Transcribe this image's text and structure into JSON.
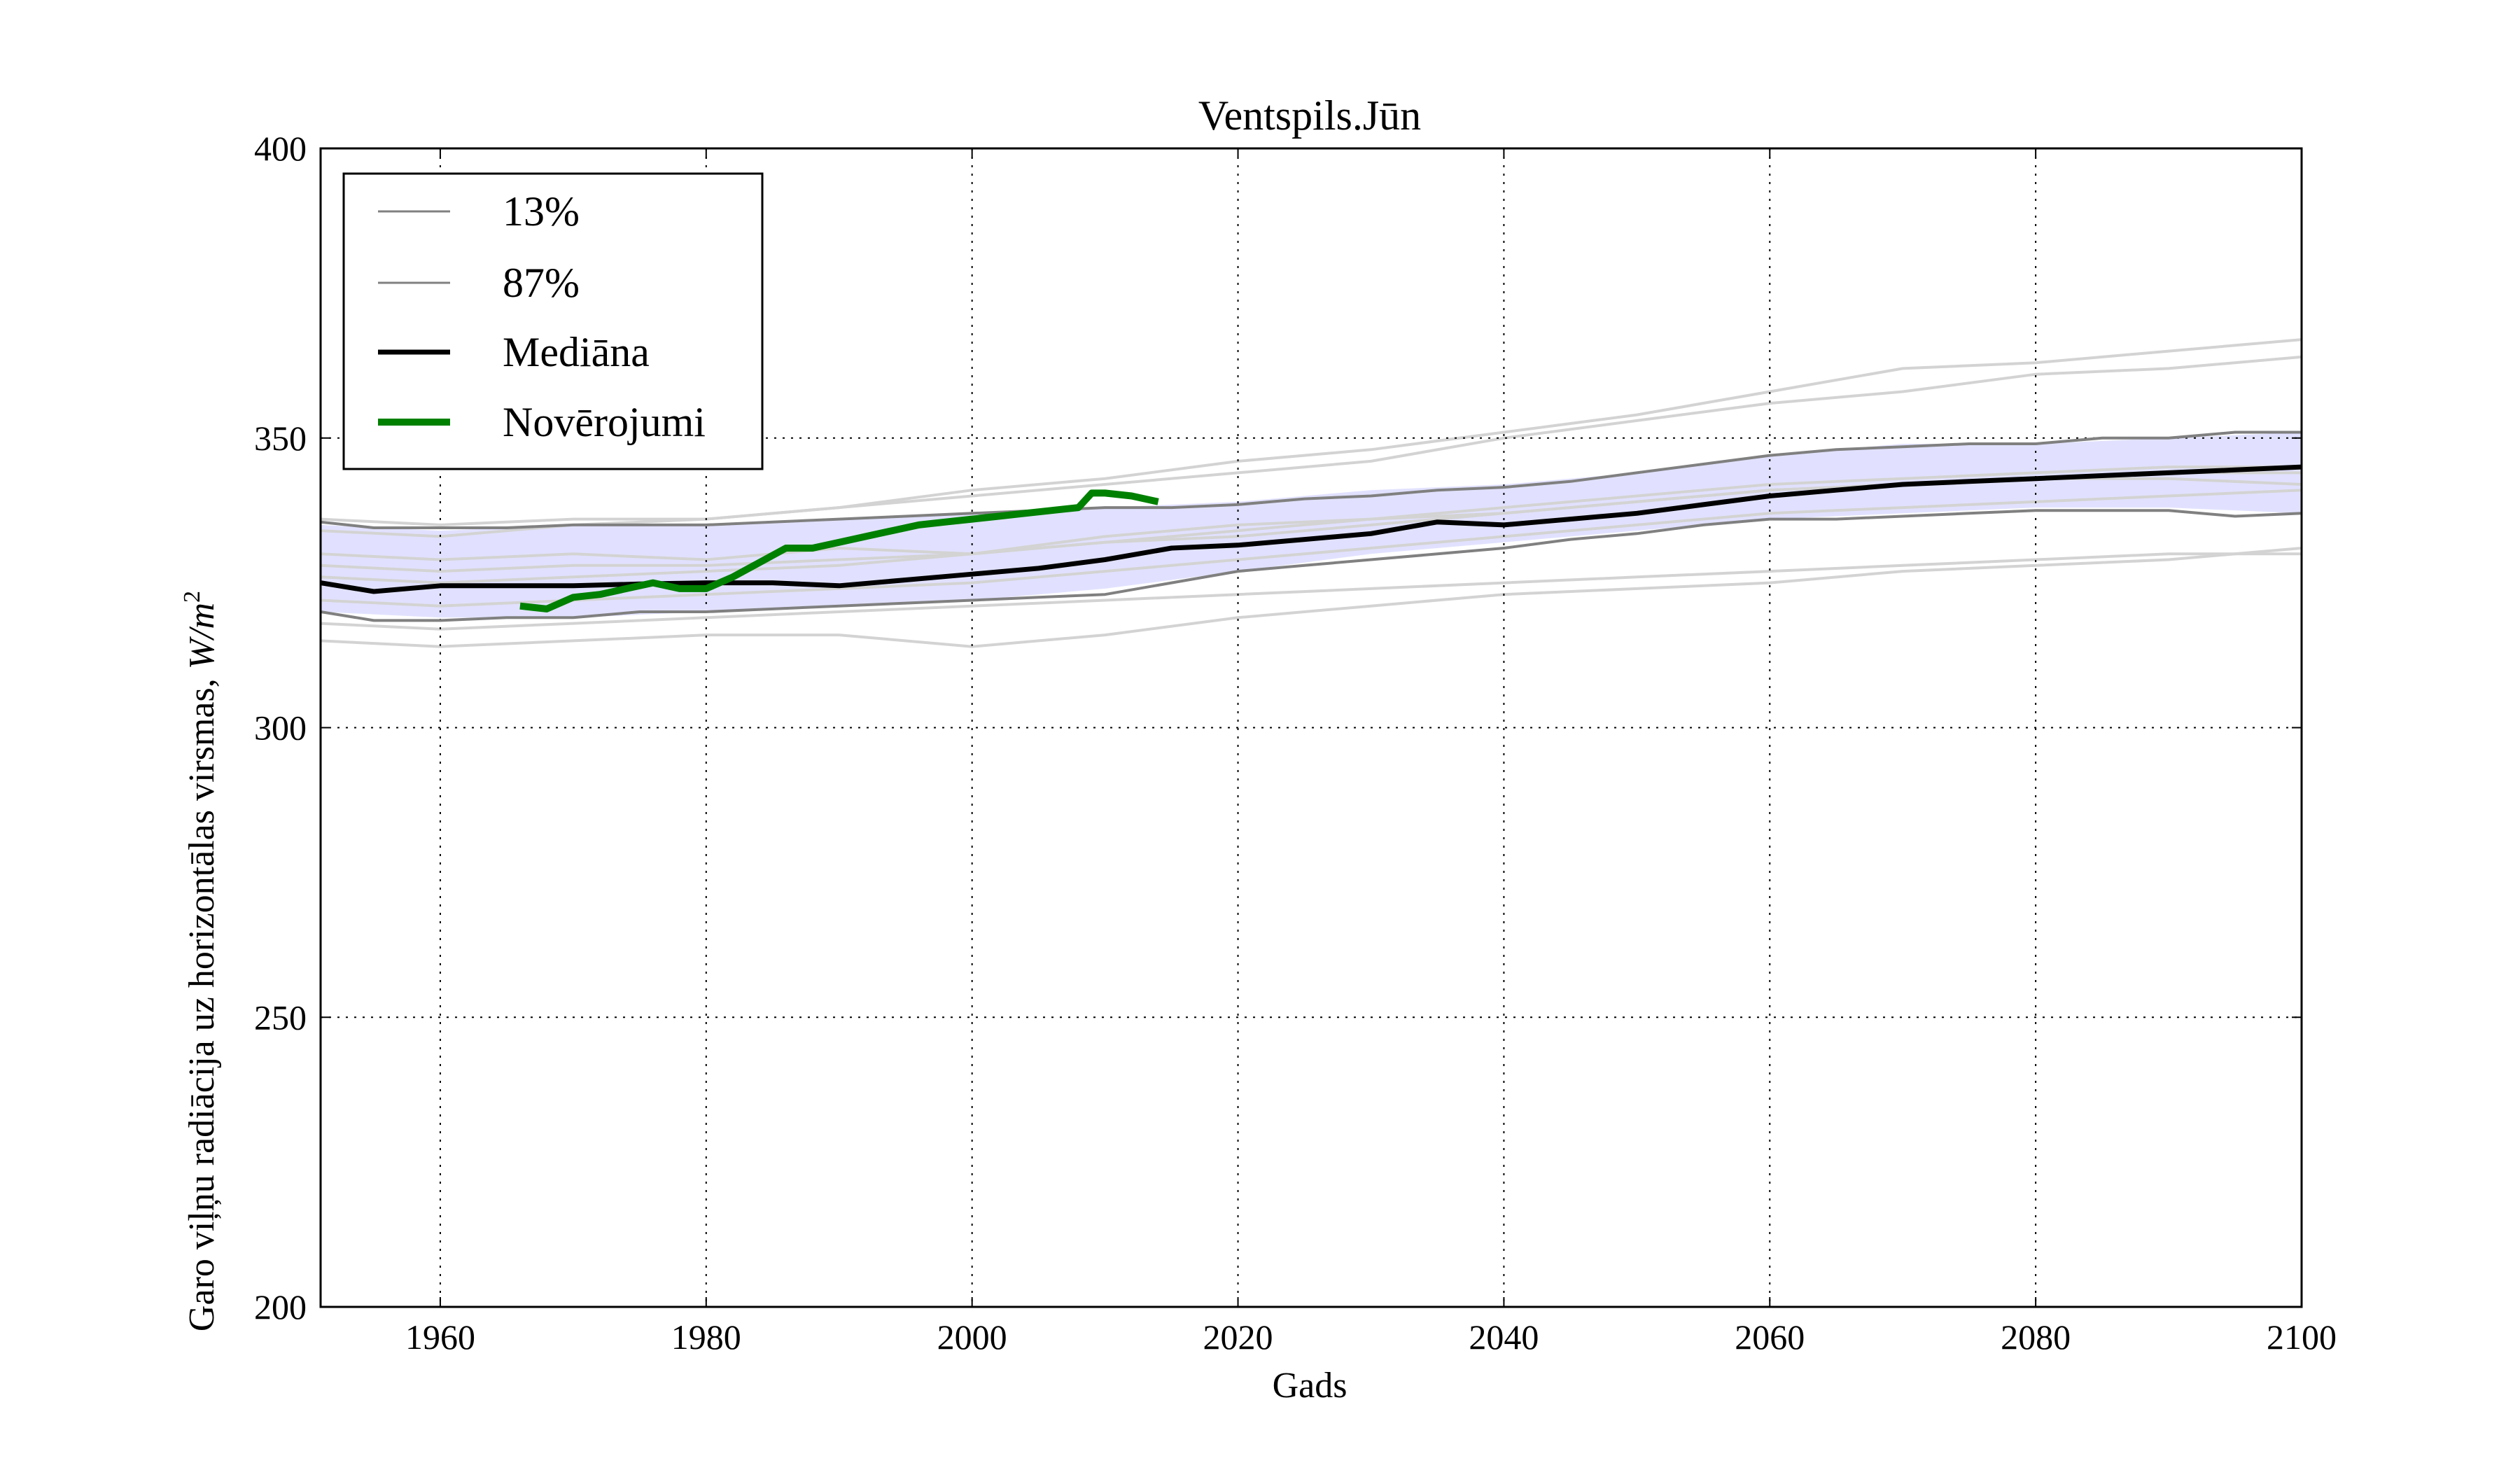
{
  "chart_data": {
    "type": "line",
    "title": "Ventspils.Jūn",
    "xlabel": "Gads",
    "ylabel_text": "Garo viļņu radiācija uz horizontālas virsmas, ",
    "ylabel_unit": "W/m",
    "ylabel_unit_exp": "2",
    "xlim": [
      1951,
      2100
    ],
    "ylim": [
      200,
      400
    ],
    "x_ticks": [
      1960,
      1980,
      2000,
      2020,
      2040,
      2060,
      2080,
      2100
    ],
    "y_ticks": [
      200,
      250,
      300,
      350,
      400
    ],
    "grid": true,
    "legend": {
      "placement": "top-left",
      "entries": [
        {
          "label": "13%",
          "color": "#808080",
          "style": "thin"
        },
        {
          "label": "87%",
          "color": "#808080",
          "style": "thin"
        },
        {
          "label": "Mediāna",
          "color": "#000000",
          "style": "medium"
        },
        {
          "label": "Novērojumi",
          "color": "#008000",
          "style": "thick"
        }
      ]
    },
    "band": {
      "color": "#dcdcff",
      "x": [
        1951,
        1960,
        1970,
        1980,
        1990,
        2000,
        2010,
        2020,
        2030,
        2040,
        2050,
        2060,
        2070,
        2080,
        2090,
        2100
      ],
      "lower": [
        320,
        319,
        319,
        320,
        321,
        322,
        324,
        327,
        330,
        332,
        334,
        336,
        337,
        338,
        338,
        337
      ],
      "upper": [
        335,
        334,
        335,
        335,
        336,
        337,
        338,
        339,
        341,
        342,
        344,
        347,
        349,
        349,
        350,
        351
      ]
    },
    "series": [
      {
        "name": "13%",
        "color": "#808080",
        "role": "bound",
        "x": [
          1951,
          1955,
          1960,
          1965,
          1970,
          1975,
          1980,
          1985,
          1990,
          1995,
          2000,
          2005,
          2010,
          2015,
          2020,
          2025,
          2030,
          2035,
          2040,
          2045,
          2050,
          2055,
          2060,
          2065,
          2070,
          2075,
          2080,
          2085,
          2090,
          2095,
          2100
        ],
        "y": [
          320,
          318.5,
          318.5,
          319,
          319,
          320,
          320,
          320.5,
          321,
          321.5,
          322,
          322.5,
          323,
          325,
          327,
          328,
          329,
          330,
          331,
          332.5,
          333.5,
          335,
          336,
          336,
          336.5,
          337,
          337.5,
          337.5,
          337.5,
          336.5,
          337
        ]
      },
      {
        "name": "87%",
        "color": "#808080",
        "role": "bound",
        "x": [
          1951,
          1955,
          1960,
          1965,
          1970,
          1975,
          1980,
          1985,
          1990,
          1995,
          2000,
          2005,
          2010,
          2015,
          2020,
          2025,
          2030,
          2035,
          2040,
          2045,
          2050,
          2055,
          2060,
          2065,
          2070,
          2075,
          2080,
          2085,
          2090,
          2095,
          2100
        ],
        "y": [
          335.5,
          334.5,
          334.5,
          334.5,
          335,
          335,
          335,
          335.5,
          336,
          336.5,
          337,
          337.5,
          338,
          338,
          338.5,
          339.5,
          340,
          341,
          341.5,
          342.5,
          344,
          345.5,
          347,
          348,
          348.5,
          349,
          349,
          350,
          350,
          351,
          351
        ]
      },
      {
        "name": "Mediāna",
        "color": "#000000",
        "role": "median",
        "x": [
          1951,
          1955,
          1960,
          1965,
          1970,
          1975,
          1980,
          1985,
          1990,
          1995,
          2000,
          2005,
          2010,
          2015,
          2020,
          2025,
          2030,
          2035,
          2040,
          2045,
          2050,
          2055,
          2060,
          2065,
          2070,
          2075,
          2080,
          2085,
          2090,
          2095,
          2100
        ],
        "y": [
          325,
          323.5,
          324.5,
          324.5,
          324.5,
          324.8,
          325,
          325,
          324.5,
          325.5,
          326.5,
          327.5,
          329,
          331,
          331.5,
          332.5,
          333.5,
          335.5,
          335,
          336,
          337,
          338.5,
          340,
          341,
          342,
          342.5,
          343,
          343.5,
          344,
          344.5,
          345
        ]
      },
      {
        "name": "Novērojumi",
        "color": "#008000",
        "role": "observations",
        "x": [
          1966,
          1968,
          1970,
          1972,
          1974,
          1976,
          1978,
          1980,
          1982,
          1984,
          1986,
          1988,
          1990,
          1992,
          1994,
          1996,
          1998,
          2000,
          2002,
          2004,
          2006,
          2008,
          2009,
          2010,
          2012,
          2014
        ],
        "y": [
          321,
          320.5,
          322.5,
          323,
          324,
          325,
          324,
          324,
          326,
          328.5,
          331,
          331,
          332,
          333,
          334,
          335,
          335.5,
          336,
          336.5,
          337,
          337.5,
          338,
          340.5,
          340.5,
          340,
          339
        ]
      }
    ],
    "model_runs": {
      "color": "#d3d3d3",
      "x": [
        1951,
        1960,
        1970,
        1980,
        1990,
        2000,
        2010,
        2020,
        2030,
        2040,
        2050,
        2060,
        2070,
        2080,
        2090,
        2100
      ],
      "runs": [
        [
          315,
          314,
          315,
          316,
          316,
          314,
          316,
          319,
          321,
          323,
          324,
          325,
          327,
          328,
          329,
          331
        ],
        [
          318,
          317,
          318,
          319,
          320,
          321,
          322,
          323,
          324,
          325,
          326,
          327,
          328,
          329,
          330,
          330
        ],
        [
          330,
          329,
          330,
          329,
          331,
          330,
          332,
          333,
          335,
          337,
          339,
          341,
          342,
          343,
          343,
          342
        ],
        [
          328,
          327,
          328,
          328,
          329,
          330,
          333,
          335,
          336,
          338,
          340,
          342,
          343,
          344,
          345,
          345
        ],
        [
          336,
          335,
          336,
          336,
          338,
          340,
          342,
          344,
          346,
          350,
          353,
          356,
          358,
          361,
          362,
          364
        ],
        [
          334,
          333,
          335,
          336,
          338,
          341,
          343,
          346,
          348,
          351,
          354,
          358,
          362,
          363,
          365,
          367
        ],
        [
          326,
          325,
          326,
          327,
          328,
          330,
          332,
          334,
          336,
          337,
          339,
          341,
          342,
          343,
          344,
          344
        ],
        [
          322,
          321,
          322,
          323,
          324,
          325,
          327,
          329,
          331,
          333,
          335,
          337,
          338,
          339,
          340,
          341
        ]
      ]
    }
  }
}
